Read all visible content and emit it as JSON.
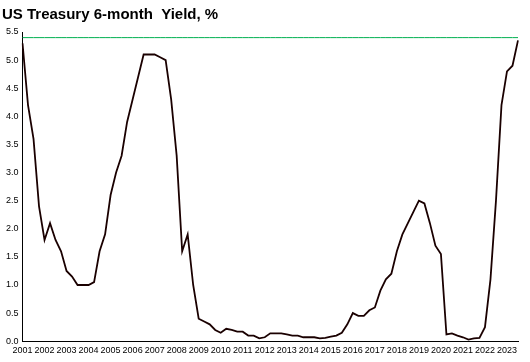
{
  "chart_data": {
    "type": "line",
    "title": "US Treasury 6-month  Yield, %",
    "categories": [
      "2001",
      null,
      null,
      null,
      "2002",
      null,
      null,
      null,
      "2003",
      null,
      null,
      null,
      "2004",
      null,
      null,
      null,
      "2005",
      null,
      null,
      null,
      "2006",
      null,
      null,
      null,
      "2007",
      null,
      null,
      null,
      "2008",
      null,
      null,
      null,
      "2009",
      null,
      null,
      null,
      "2010",
      null,
      null,
      null,
      "2011",
      null,
      null,
      null,
      "2012",
      null,
      null,
      null,
      "2013",
      null,
      null,
      null,
      "2014",
      null,
      null,
      null,
      "2015",
      null,
      null,
      null,
      "2016",
      null,
      null,
      null,
      "2017",
      null,
      null,
      null,
      "2018",
      null,
      null,
      null,
      "2019",
      null,
      null,
      null,
      "2020",
      null,
      null,
      null,
      "2021",
      null,
      null,
      null,
      "2022",
      null,
      null,
      null,
      "2023",
      null,
      null
    ],
    "series": [
      {
        "color": "#1a0000",
        "line_style": "solid",
        "values": [
          5.3,
          4.2,
          3.6,
          2.4,
          1.8,
          2.1,
          1.8,
          1.6,
          1.25,
          1.15,
          1.0,
          1.0,
          1.0,
          1.05,
          1.6,
          1.9,
          2.6,
          3.0,
          3.3,
          3.9,
          4.3,
          4.7,
          5.1,
          5.1,
          5.1,
          5.05,
          5.0,
          4.3,
          3.3,
          1.6,
          1.9,
          1.0,
          0.4,
          0.35,
          0.3,
          0.2,
          0.15,
          0.22,
          0.2,
          0.17,
          0.17,
          0.1,
          0.1,
          0.05,
          0.07,
          0.14,
          0.14,
          0.14,
          0.12,
          0.1,
          0.1,
          0.07,
          0.07,
          0.07,
          0.05,
          0.06,
          0.08,
          0.1,
          0.15,
          0.3,
          0.5,
          0.45,
          0.45,
          0.55,
          0.6,
          0.9,
          1.1,
          1.2,
          1.6,
          1.9,
          2.1,
          2.3,
          2.5,
          2.45,
          2.1,
          1.7,
          1.55,
          0.12,
          0.14,
          0.1,
          0.07,
          0.03,
          0.05,
          0.06,
          0.25,
          1.1,
          2.5,
          4.2,
          4.8,
          4.9,
          5.35
        ]
      }
    ],
    "reference_line": {
      "value": 5.4,
      "color": "#00b050"
    },
    "ylim": [
      0,
      5.5
    ],
    "yticks": [
      {
        "value": 0,
        "label": "0.0"
      },
      {
        "value": 0.5,
        "label": "0.5"
      },
      {
        "value": 1,
        "label": "1.0"
      },
      {
        "value": 1.5,
        "label": "1.5"
      },
      {
        "value": 2,
        "label": "2.0"
      },
      {
        "value": 2.5,
        "label": "2.5"
      },
      {
        "value": 3,
        "label": "3.0"
      },
      {
        "value": 3.5,
        "label": "3.5"
      },
      {
        "value": 4,
        "label": "4.0"
      },
      {
        "value": 4.5,
        "label": "4.5"
      },
      {
        "value": 5,
        "label": "5.0"
      },
      {
        "value": 5.5,
        "label": "5.5"
      }
    ],
    "grid": false
  }
}
